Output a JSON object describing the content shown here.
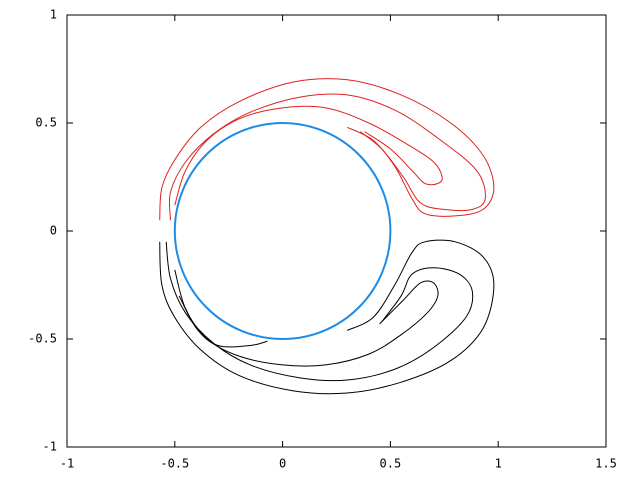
{
  "chart_data": {
    "type": "contour",
    "xlim": [
      -1,
      1.5
    ],
    "ylim": [
      -1,
      1
    ],
    "xticks": [
      -1,
      -0.5,
      0,
      0.5,
      1,
      1.5
    ],
    "yticks": [
      -1,
      -0.5,
      0,
      0.5,
      1
    ],
    "circle": {
      "center": [
        0,
        0
      ],
      "radius": 0.5,
      "color": "#1e8ce6"
    },
    "series": [
      {
        "color": "#e02020",
        "x": [
          -0.57,
          -0.56,
          -0.5,
          -0.38,
          -0.2,
          0.05,
          0.3,
          0.55,
          0.78,
          0.93,
          0.98,
          0.93,
          0.8,
          0.66,
          0.6,
          0.52,
          0.42,
          0.3
        ],
        "y": [
          0.05,
          0.2,
          0.33,
          0.48,
          0.6,
          0.69,
          0.7,
          0.63,
          0.5,
          0.35,
          0.2,
          0.1,
          0.07,
          0.08,
          0.15,
          0.3,
          0.42,
          0.48
        ]
      },
      {
        "color": "#e02020",
        "x": [
          -0.52,
          -0.52,
          -0.45,
          -0.32,
          -0.15,
          0.08,
          0.3,
          0.52,
          0.72,
          0.9,
          0.94,
          0.88,
          0.75,
          0.64,
          0.56,
          0.46,
          0.36
        ],
        "y": [
          0.05,
          0.18,
          0.32,
          0.45,
          0.55,
          0.62,
          0.63,
          0.56,
          0.43,
          0.28,
          0.15,
          0.1,
          0.1,
          0.13,
          0.25,
          0.38,
          0.46
        ]
      },
      {
        "color": "#e02020",
        "x": [
          -0.5,
          -0.45,
          -0.35,
          -0.2,
          0,
          0.2,
          0.4,
          0.58,
          0.7,
          0.74,
          0.72,
          0.66,
          0.6,
          0.5,
          0.38
        ],
        "y": [
          0.12,
          0.28,
          0.42,
          0.52,
          0.57,
          0.57,
          0.5,
          0.4,
          0.32,
          0.25,
          0.22,
          0.22,
          0.28,
          0.38,
          0.46
        ]
      },
      {
        "color": "#000000",
        "x": [
          -0.57,
          -0.56,
          -0.5,
          -0.38,
          -0.2,
          0.05,
          0.3,
          0.55,
          0.78,
          0.93,
          0.98,
          0.93,
          0.8,
          0.66,
          0.6,
          0.52,
          0.42,
          0.3
        ],
        "y": [
          -0.05,
          -0.25,
          -0.4,
          -0.55,
          -0.67,
          -0.74,
          -0.75,
          -0.7,
          -0.6,
          -0.45,
          -0.25,
          -0.12,
          -0.05,
          -0.05,
          -0.1,
          -0.25,
          -0.4,
          -0.46
        ]
      },
      {
        "color": "#000000",
        "x": [
          -0.54,
          -0.52,
          -0.45,
          -0.32,
          -0.15,
          0.08,
          0.3,
          0.52,
          0.7,
          0.85,
          0.88,
          0.82,
          0.7,
          0.6,
          0.55,
          0.46
        ],
        "y": [
          -0.05,
          -0.22,
          -0.38,
          -0.52,
          -0.62,
          -0.68,
          -0.69,
          -0.64,
          -0.54,
          -0.4,
          -0.28,
          -0.2,
          -0.17,
          -0.2,
          -0.3,
          -0.42
        ]
      },
      {
        "color": "#000000",
        "x": [
          -0.5,
          -0.45,
          -0.35,
          -0.2,
          0,
          0.2,
          0.4,
          0.55,
          0.67,
          0.72,
          0.7,
          0.64,
          0.56,
          0.45
        ],
        "y": [
          -0.18,
          -0.36,
          -0.5,
          -0.58,
          -0.62,
          -0.62,
          -0.57,
          -0.48,
          -0.38,
          -0.3,
          -0.24,
          -0.24,
          -0.32,
          -0.43
        ]
      },
      {
        "color": "#000000",
        "x": [
          -0.48,
          -0.4,
          -0.3,
          -0.15,
          -0.07
        ],
        "y": [
          -0.3,
          -0.45,
          -0.53,
          -0.53,
          -0.51
        ]
      }
    ]
  }
}
